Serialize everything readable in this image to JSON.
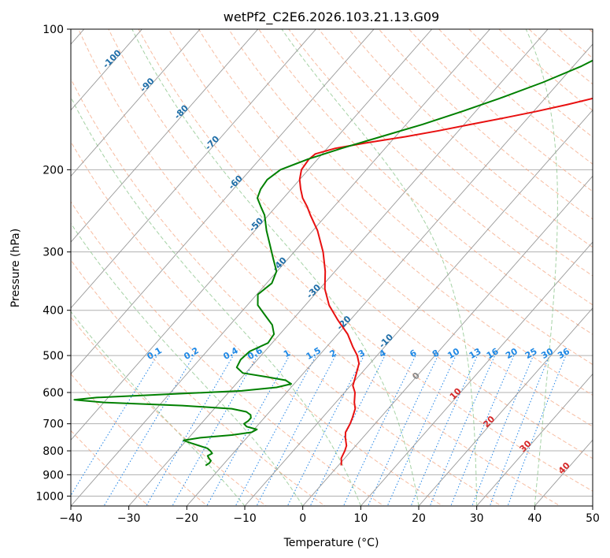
{
  "chart_data": {
    "type": "line",
    "title": "wetPf2_C2E6.2026.103.21.13.G09",
    "xlabel": "Temperature (°C)",
    "ylabel": "Pressure (hPa)",
    "xlim": [
      -40,
      50
    ],
    "ylim": [
      1050,
      100
    ],
    "y_scale": "log",
    "grid": true,
    "x_ticks": [
      "−40",
      "−30",
      "−20",
      "−10",
      "0",
      "10",
      "20",
      "30",
      "40",
      "50"
    ],
    "y_ticks": [
      "100",
      "200",
      "300",
      "400",
      "500",
      "600",
      "700",
      "800",
      "900",
      "1000"
    ],
    "y_tick_values": [
      100,
      200,
      300,
      400,
      500,
      600,
      700,
      800,
      900,
      1000
    ],
    "series": [
      {
        "color": "#e81010",
        "points": [
          [
            100,
            7.8
          ],
          [
            105,
            4.3
          ],
          [
            110,
            1.0
          ],
          [
            115,
            -1.5
          ],
          [
            120,
            -3.2
          ],
          [
            125,
            -4.5
          ],
          [
            130,
            -5.6
          ],
          [
            135,
            -7.4
          ],
          [
            140,
            -11.2
          ],
          [
            145,
            -15.2
          ],
          [
            150,
            -19.5
          ],
          [
            155,
            -24.2
          ],
          [
            160,
            -28.9
          ],
          [
            165,
            -33.4
          ],
          [
            170,
            -38.3
          ],
          [
            175,
            -43.9
          ],
          [
            180,
            -48.6
          ],
          [
            185,
            -51.2
          ],
          [
            190,
            -51.5
          ],
          [
            200,
            -51.2
          ],
          [
            210,
            -50.0
          ],
          [
            220,
            -48.4
          ],
          [
            230,
            -46.7
          ],
          [
            240,
            -44.6
          ],
          [
            250,
            -42.8
          ],
          [
            270,
            -39.2
          ],
          [
            300,
            -35.0
          ],
          [
            330,
            -31.7
          ],
          [
            360,
            -29.1
          ],
          [
            390,
            -25.9
          ],
          [
            420,
            -22.1
          ],
          [
            450,
            -18.3
          ],
          [
            480,
            -15.4
          ],
          [
            500,
            -13.4
          ],
          [
            520,
            -11.9
          ],
          [
            550,
            -10.7
          ],
          [
            580,
            -9.6
          ],
          [
            600,
            -8.2
          ],
          [
            630,
            -6.8
          ],
          [
            650,
            -5.7
          ],
          [
            680,
            -4.8
          ],
          [
            700,
            -4.3
          ],
          [
            730,
            -3.8
          ],
          [
            750,
            -3.0
          ],
          [
            780,
            -1.6
          ],
          [
            800,
            -1.1
          ],
          [
            830,
            -0.6
          ],
          [
            845,
            0.0
          ],
          [
            860,
            0.5
          ]
        ]
      },
      {
        "color": "#008000",
        "points": [
          [
            100,
            -12.0
          ],
          [
            110,
            -15.2
          ],
          [
            120,
            -18.6
          ],
          [
            130,
            -22.8
          ],
          [
            140,
            -27.5
          ],
          [
            150,
            -32.3
          ],
          [
            160,
            -37.2
          ],
          [
            170,
            -42.5
          ],
          [
            180,
            -47.5
          ],
          [
            190,
            -51.7
          ],
          [
            200,
            -54.8
          ],
          [
            210,
            -55.6
          ],
          [
            220,
            -55.3
          ],
          [
            230,
            -54.5
          ],
          [
            240,
            -52.6
          ],
          [
            250,
            -50.7
          ],
          [
            270,
            -48.0
          ],
          [
            290,
            -45.2
          ],
          [
            310,
            -42.6
          ],
          [
            330,
            -40.1
          ],
          [
            350,
            -39.1
          ],
          [
            370,
            -39.8
          ],
          [
            390,
            -38.2
          ],
          [
            410,
            -35.4
          ],
          [
            430,
            -32.7
          ],
          [
            450,
            -31.0
          ],
          [
            470,
            -30.7
          ],
          [
            490,
            -32.6
          ],
          [
            510,
            -32.9
          ],
          [
            530,
            -32.4
          ],
          [
            545,
            -30.5
          ],
          [
            555,
            -26.0
          ],
          [
            565,
            -22.0
          ],
          [
            575,
            -20.5
          ],
          [
            585,
            -22.5
          ],
          [
            595,
            -28.0
          ],
          [
            605,
            -40.0
          ],
          [
            615,
            -52.0
          ],
          [
            622,
            -55.5
          ],
          [
            630,
            -50.0
          ],
          [
            640,
            -36.0
          ],
          [
            650,
            -27.0
          ],
          [
            660,
            -24.0
          ],
          [
            670,
            -22.8
          ],
          [
            680,
            -22.3
          ],
          [
            690,
            -22.3
          ],
          [
            700,
            -22.6
          ],
          [
            710,
            -21.7
          ],
          [
            720,
            -19.5
          ],
          [
            730,
            -20.0
          ],
          [
            740,
            -23.0
          ],
          [
            750,
            -28.0
          ],
          [
            760,
            -30.5
          ],
          [
            770,
            -28.8
          ],
          [
            780,
            -27.0
          ],
          [
            790,
            -25.2
          ],
          [
            800,
            -24.3
          ],
          [
            810,
            -23.6
          ],
          [
            820,
            -24.0
          ],
          [
            830,
            -23.4
          ],
          [
            840,
            -22.7
          ],
          [
            850,
            -22.6
          ],
          [
            860,
            -22.9
          ]
        ]
      }
    ],
    "background_lines": {
      "isotherms_skewed": {
        "color": "#999999",
        "step": 10
      },
      "dry_adiabats": {
        "color": "#f4a582",
        "style": "dashed",
        "step": 10,
        "range": [
          -30,
          260
        ]
      },
      "moist_adiabats": {
        "color": "#7fbf7f",
        "style": "dashed",
        "surface_temps": [
          -10,
          0,
          10,
          20,
          30,
          40
        ]
      },
      "mixing_ratio": {
        "color": "#1e82e6",
        "style": "dotted",
        "values": [
          0.1,
          0.2,
          0.4,
          0.6,
          1,
          1.5,
          2,
          3,
          4,
          6,
          8,
          10,
          13,
          16,
          20,
          25,
          30,
          36
        ]
      },
      "reference_curves": {
        "color": "#d2b48c",
        "style": "dashed"
      }
    },
    "annotations": {
      "mixing_ratio_labels": [
        "0.1",
        "0.2",
        "0.4",
        "0.6",
        "1",
        "1.5",
        "2",
        "3",
        "4",
        "6",
        "8",
        "10",
        "13",
        "16",
        "20",
        "25",
        "30",
        "36"
      ],
      "isotherm_labels_blue": [
        "-100",
        "-90",
        "-80",
        "-70",
        "-60",
        "-50",
        "-40",
        "-30",
        "-20",
        "-10"
      ],
      "isotherm_labels_red": [
        "10",
        "20",
        "30",
        "40"
      ],
      "zero_label": "0",
      "label_colors": {
        "mixing": "#1e88e5",
        "cold": "#1f6ea8",
        "warm": "#d62728",
        "zero": "#888888"
      }
    }
  }
}
